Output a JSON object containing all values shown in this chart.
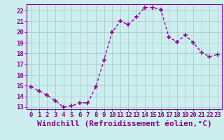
{
  "x": [
    0,
    1,
    2,
    3,
    4,
    5,
    6,
    7,
    8,
    9,
    10,
    11,
    12,
    13,
    14,
    15,
    16,
    17,
    18,
    19,
    20,
    21,
    22,
    23
  ],
  "y": [
    14.9,
    14.5,
    14.1,
    13.6,
    13.0,
    13.1,
    13.4,
    13.4,
    14.9,
    17.4,
    20.0,
    21.0,
    20.7,
    21.4,
    22.3,
    22.3,
    22.1,
    19.5,
    19.1,
    19.7,
    19.0,
    18.1,
    17.7,
    17.9
  ],
  "line_color": "#990099",
  "marker": "+",
  "markersize": 4,
  "bg_color": "#cceeee",
  "grid_color": "#aacccc",
  "xlabel": "Windchill (Refroidissement éolien,°C)",
  "xlabel_fontsize": 8,
  "xlabel_color": "#880088",
  "ylim": [
    12.8,
    22.6
  ],
  "yticks": [
    13,
    14,
    15,
    16,
    17,
    18,
    19,
    20,
    21,
    22
  ],
  "xticks": [
    0,
    1,
    2,
    3,
    4,
    5,
    6,
    7,
    8,
    9,
    10,
    11,
    12,
    13,
    14,
    15,
    16,
    17,
    18,
    19,
    20,
    21,
    22,
    23
  ],
  "tick_fontsize": 6.5,
  "tick_color": "#880088",
  "linewidth": 1.0
}
